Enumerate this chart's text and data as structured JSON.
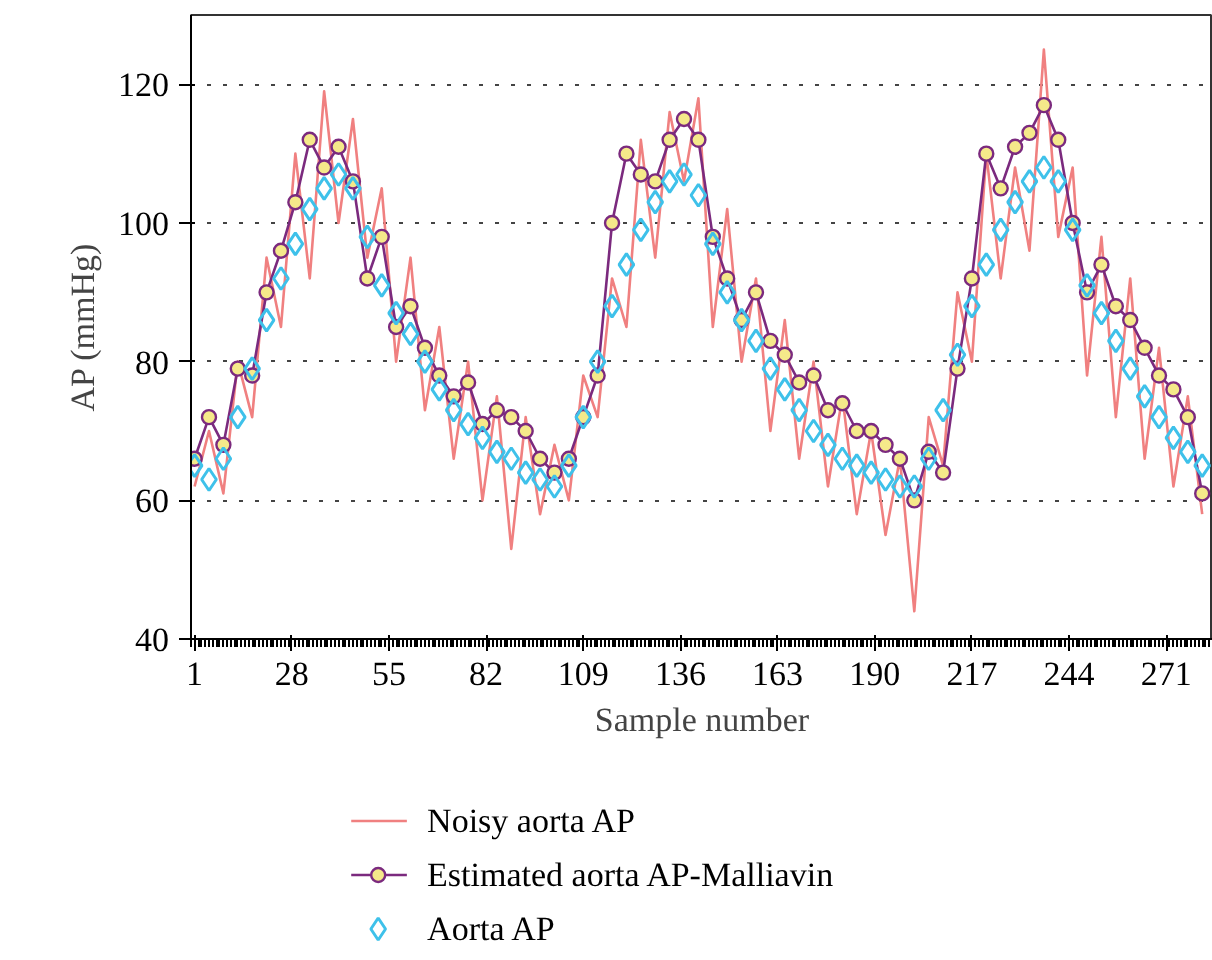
{
  "chart_data": {
    "type": "line",
    "xlabel": "Sample number",
    "ylabel": "AP (mmHg)",
    "x": [
      1,
      5,
      9,
      13,
      17,
      21,
      25,
      29,
      33,
      37,
      41,
      45,
      49,
      53,
      57,
      61,
      65,
      69,
      73,
      77,
      81,
      85,
      89,
      93,
      97,
      101,
      105,
      109,
      113,
      117,
      121,
      125,
      129,
      133,
      137,
      141,
      145,
      149,
      153,
      157,
      161,
      165,
      169,
      173,
      177,
      181,
      185,
      189,
      193,
      197,
      201,
      205,
      209,
      213,
      217,
      221,
      225,
      229,
      233,
      237,
      241,
      245,
      249,
      253,
      257,
      261,
      265,
      269,
      273,
      277,
      281
    ],
    "series": [
      {
        "name": "Noisy aorta AP",
        "color": "#f08080",
        "type": "line",
        "marker": "none",
        "values": [
          62,
          70,
          61,
          80,
          72,
          95,
          85,
          110,
          92,
          119,
          100,
          115,
          95,
          105,
          80,
          95,
          73,
          85,
          66,
          80,
          60,
          75,
          53,
          72,
          58,
          68,
          60,
          78,
          72,
          92,
          85,
          112,
          95,
          116,
          106,
          118,
          85,
          102,
          80,
          92,
          70,
          86,
          66,
          80,
          62,
          75,
          58,
          70,
          55,
          66,
          44,
          72,
          65,
          90,
          80,
          110,
          92,
          108,
          96,
          125,
          98,
          108,
          78,
          98,
          72,
          92,
          66,
          82,
          62,
          75,
          58
        ]
      },
      {
        "name": "Estimated aorta AP-Malliavin",
        "color": "#7b2a7e",
        "type": "line",
        "marker": "circle",
        "values": [
          66,
          72,
          68,
          79,
          78,
          90,
          96,
          103,
          112,
          108,
          111,
          106,
          92,
          98,
          85,
          88,
          82,
          78,
          75,
          77,
          71,
          73,
          72,
          70,
          66,
          64,
          66,
          72,
          78,
          100,
          110,
          107,
          106,
          112,
          115,
          112,
          98,
          92,
          86,
          90,
          83,
          81,
          77,
          78,
          73,
          74,
          70,
          70,
          68,
          66,
          60,
          67,
          64,
          79,
          92,
          110,
          105,
          111,
          113,
          117,
          112,
          100,
          90,
          94,
          88,
          86,
          82,
          78,
          76,
          72,
          61
        ]
      },
      {
        "name": "Aorta AP",
        "color": "#3ec1ea",
        "type": "scatter",
        "marker": "diamond",
        "values": [
          65,
          63,
          66,
          72,
          79,
          86,
          92,
          97,
          102,
          105,
          107,
          105,
          98,
          91,
          87,
          84,
          80,
          76,
          73,
          71,
          69,
          67,
          66,
          64,
          63,
          62,
          65,
          72,
          80,
          88,
          94,
          99,
          103,
          106,
          107,
          104,
          97,
          90,
          86,
          83,
          79,
          76,
          73,
          70,
          68,
          66,
          65,
          64,
          63,
          62,
          62,
          66,
          73,
          81,
          88,
          94,
          99,
          103,
          106,
          108,
          106,
          99,
          91,
          87,
          83,
          79,
          75,
          72,
          69,
          67,
          65
        ]
      }
    ],
    "xlim": [
      0,
      284
    ],
    "ylim": [
      40,
      130
    ],
    "xticks": [
      1,
      28,
      55,
      82,
      109,
      136,
      163,
      190,
      217,
      244,
      271
    ],
    "yticks": [
      40,
      60,
      80,
      100,
      120
    ],
    "grid": "y",
    "legend": "bottom"
  }
}
